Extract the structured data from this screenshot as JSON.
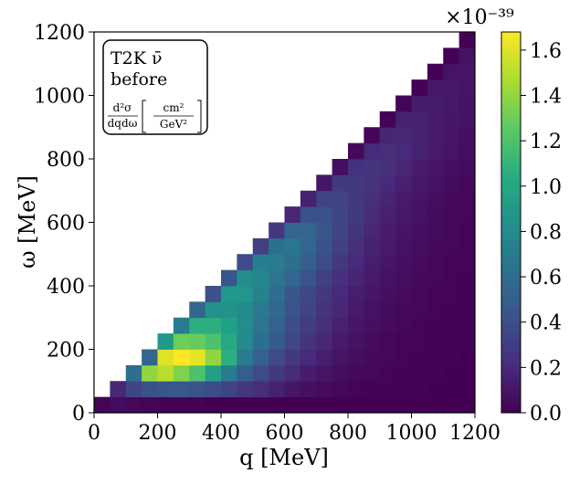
{
  "chart_data": {
    "type": "heatmap",
    "title": "",
    "annotation": {
      "line1": "T2K ν̄",
      "line2": "before",
      "formula_num": "d²σ",
      "formula_den": "dqdω",
      "unit_num": "cm²",
      "unit_den": "GeV²"
    },
    "xlabel": "q [MeV]",
    "ylabel": "ω [MeV]",
    "xlim": [
      0,
      1200
    ],
    "ylim": [
      0,
      1200
    ],
    "bin_width": 50,
    "x_ticks": [
      "0",
      "200",
      "400",
      "600",
      "800",
      "1000",
      "1200"
    ],
    "y_ticks": [
      "0",
      "200",
      "400",
      "600",
      "800",
      "1000",
      "1200"
    ],
    "colorbar": {
      "min": 0.0,
      "max": 1.68,
      "multiplier": "×10⁻³⁹",
      "ticks": [
        "0.0",
        "0.2",
        "0.4",
        "0.6",
        "0.8",
        "1.0",
        "1.2",
        "1.4",
        "1.6"
      ],
      "colormap": "viridis"
    },
    "z": [
      [
        0.02,
        0.05,
        0.03,
        0.02,
        0.01,
        0.01,
        0.01,
        0.0,
        0.0,
        0.0,
        0.0,
        0.0,
        0.0,
        0.0,
        0.0,
        0.0,
        0.0,
        0.0,
        0.0,
        0.0,
        0.0,
        0.0,
        0.0,
        0.0
      ],
      [
        null,
        0.18,
        0.35,
        0.42,
        0.46,
        0.47,
        0.44,
        0.4,
        0.34,
        0.27,
        0.22,
        0.16,
        0.1,
        0.07,
        0.05,
        0.03,
        0.02,
        0.01,
        0.01,
        0.01,
        0.01,
        0.0,
        0.0,
        0.0
      ],
      [
        null,
        null,
        0.6,
        1.4,
        1.5,
        1.35,
        1.2,
        0.95,
        0.7,
        0.5,
        0.38,
        0.28,
        0.2,
        0.13,
        0.09,
        0.06,
        0.04,
        0.03,
        0.02,
        0.01,
        0.01,
        0.01,
        0.0,
        0.0
      ],
      [
        null,
        null,
        null,
        0.55,
        1.6,
        1.68,
        1.62,
        1.4,
        1.05,
        0.7,
        0.52,
        0.38,
        0.28,
        0.2,
        0.14,
        0.09,
        0.06,
        0.04,
        0.03,
        0.02,
        0.01,
        0.01,
        0.01,
        0.0
      ],
      [
        null,
        null,
        null,
        null,
        0.9,
        1.3,
        1.28,
        1.2,
        1.0,
        0.8,
        0.62,
        0.48,
        0.36,
        0.25,
        0.18,
        0.12,
        0.08,
        0.05,
        0.03,
        0.02,
        0.02,
        0.01,
        0.01,
        0.01
      ],
      [
        null,
        null,
        null,
        null,
        null,
        0.7,
        1.05,
        1.05,
        0.95,
        0.82,
        0.65,
        0.52,
        0.4,
        0.3,
        0.22,
        0.15,
        0.1,
        0.07,
        0.05,
        0.03,
        0.02,
        0.01,
        0.01,
        0.01
      ],
      [
        null,
        null,
        null,
        null,
        null,
        null,
        0.55,
        0.85,
        0.85,
        0.8,
        0.68,
        0.56,
        0.44,
        0.34,
        0.25,
        0.18,
        0.12,
        0.08,
        0.05,
        0.04,
        0.03,
        0.02,
        0.01,
        0.01
      ],
      [
        null,
        null,
        null,
        null,
        null,
        null,
        null,
        0.42,
        0.9,
        0.88,
        0.75,
        0.6,
        0.46,
        0.36,
        0.28,
        0.2,
        0.14,
        0.1,
        0.07,
        0.05,
        0.03,
        0.02,
        0.02,
        0.01
      ],
      [
        null,
        null,
        null,
        null,
        null,
        null,
        null,
        null,
        0.45,
        0.82,
        0.78,
        0.66,
        0.55,
        0.44,
        0.33,
        0.24,
        0.17,
        0.12,
        0.08,
        0.06,
        0.04,
        0.03,
        0.02,
        0.01
      ],
      [
        null,
        null,
        null,
        null,
        null,
        null,
        null,
        null,
        null,
        0.38,
        0.72,
        0.7,
        0.62,
        0.5,
        0.38,
        0.28,
        0.2,
        0.14,
        0.1,
        0.07,
        0.05,
        0.03,
        0.02,
        0.02
      ],
      [
        null,
        null,
        null,
        null,
        null,
        null,
        null,
        null,
        null,
        null,
        0.32,
        0.62,
        0.66,
        0.55,
        0.43,
        0.32,
        0.23,
        0.16,
        0.12,
        0.08,
        0.06,
        0.04,
        0.03,
        0.02
      ],
      [
        null,
        null,
        null,
        null,
        null,
        null,
        null,
        null,
        null,
        null,
        null,
        0.28,
        0.55,
        0.55,
        0.45,
        0.35,
        0.26,
        0.18,
        0.13,
        0.09,
        0.06,
        0.05,
        0.03,
        0.02
      ],
      [
        null,
        null,
        null,
        null,
        null,
        null,
        null,
        null,
        null,
        null,
        null,
        null,
        0.18,
        0.42,
        0.42,
        0.35,
        0.28,
        0.21,
        0.15,
        0.11,
        0.08,
        0.05,
        0.04,
        0.03
      ],
      [
        null,
        null,
        null,
        null,
        null,
        null,
        null,
        null,
        null,
        null,
        null,
        null,
        null,
        0.15,
        0.34,
        0.34,
        0.29,
        0.23,
        0.17,
        0.12,
        0.09,
        0.06,
        0.04,
        0.03
      ],
      [
        null,
        null,
        null,
        null,
        null,
        null,
        null,
        null,
        null,
        null,
        null,
        null,
        null,
        null,
        0.1,
        0.28,
        0.29,
        0.25,
        0.2,
        0.15,
        0.11,
        0.08,
        0.05,
        0.04
      ],
      [
        null,
        null,
        null,
        null,
        null,
        null,
        null,
        null,
        null,
        null,
        null,
        null,
        null,
        null,
        null,
        0.06,
        0.24,
        0.26,
        0.23,
        0.18,
        0.13,
        0.1,
        0.07,
        0.05
      ],
      [
        null,
        null,
        null,
        null,
        null,
        null,
        null,
        null,
        null,
        null,
        null,
        null,
        null,
        null,
        null,
        null,
        0.04,
        0.2,
        0.22,
        0.2,
        0.16,
        0.12,
        0.09,
        0.06
      ],
      [
        null,
        null,
        null,
        null,
        null,
        null,
        null,
        null,
        null,
        null,
        null,
        null,
        null,
        null,
        null,
        null,
        null,
        0.03,
        0.17,
        0.18,
        0.16,
        0.13,
        0.1,
        0.07
      ],
      [
        null,
        null,
        null,
        null,
        null,
        null,
        null,
        null,
        null,
        null,
        null,
        null,
        null,
        null,
        null,
        null,
        null,
        null,
        0.02,
        0.15,
        0.16,
        0.13,
        0.1,
        0.08
      ],
      [
        null,
        null,
        null,
        null,
        null,
        null,
        null,
        null,
        null,
        null,
        null,
        null,
        null,
        null,
        null,
        null,
        null,
        null,
        null,
        0.02,
        0.13,
        0.13,
        0.11,
        0.08
      ],
      [
        null,
        null,
        null,
        null,
        null,
        null,
        null,
        null,
        null,
        null,
        null,
        null,
        null,
        null,
        null,
        null,
        null,
        null,
        null,
        null,
        0.01,
        0.11,
        0.11,
        0.09
      ],
      [
        null,
        null,
        null,
        null,
        null,
        null,
        null,
        null,
        null,
        null,
        null,
        null,
        null,
        null,
        null,
        null,
        null,
        null,
        null,
        null,
        null,
        0.01,
        0.09,
        0.09
      ],
      [
        null,
        null,
        null,
        null,
        null,
        null,
        null,
        null,
        null,
        null,
        null,
        null,
        null,
        null,
        null,
        null,
        null,
        null,
        null,
        null,
        null,
        null,
        0.01,
        0.08
      ],
      [
        null,
        null,
        null,
        null,
        null,
        null,
        null,
        null,
        null,
        null,
        null,
        null,
        null,
        null,
        null,
        null,
        null,
        null,
        null,
        null,
        null,
        null,
        null,
        0.01
      ]
    ]
  }
}
